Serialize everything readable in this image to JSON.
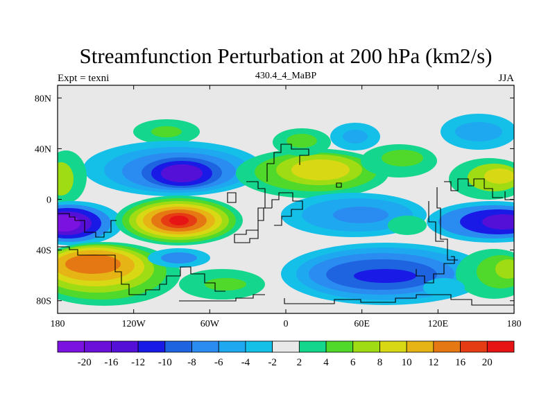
{
  "title": "Streamfunction Perturbation at 200 hPa (km2/s)",
  "left_label": "Expt = texni",
  "center_label": "430.4_4_MaBP",
  "right_label": "JJA",
  "y_ticks": [
    {
      "lat": 80,
      "label": "80N"
    },
    {
      "lat": 40,
      "label": "40N"
    },
    {
      "lat": 0,
      "label": "0"
    },
    {
      "lat": -40,
      "label": "40S"
    },
    {
      "lat": -80,
      "label": "80S"
    }
  ],
  "x_ticks": [
    {
      "lon": -180,
      "label": "180"
    },
    {
      "lon": -120,
      "label": "120W"
    },
    {
      "lon": -60,
      "label": "60W"
    },
    {
      "lon": 0,
      "label": "0"
    },
    {
      "lon": 60,
      "label": "60E"
    },
    {
      "lon": 120,
      "label": "120E"
    },
    {
      "lon": 180,
      "label": "180"
    }
  ],
  "colorbar": {
    "colors": [
      "#7b12e0",
      "#6a10d9",
      "#5410d6",
      "#1a1ae6",
      "#1e64e0",
      "#2a8cf0",
      "#1ea8f0",
      "#14c0e8",
      "#e8e8e8",
      "#14d68c",
      "#50d82a",
      "#a0dc14",
      "#d8d814",
      "#e6b414",
      "#e67814",
      "#e63c14",
      "#e61414"
    ],
    "labels": [
      "-20",
      "-16",
      "-12",
      "-10",
      "-8",
      "-6",
      "-4",
      "-2",
      "2",
      "4",
      "6",
      "8",
      "10",
      "12",
      "16",
      "20"
    ]
  },
  "chart_data": {
    "type": "heatmap",
    "title": "Streamfunction Perturbation at 200 hPa (km2/s)",
    "units": "km2/s",
    "x_range": [
      -180,
      180
    ],
    "y_range": [
      -90,
      90
    ],
    "season": "JJA",
    "experiment": "texni",
    "features": [
      {
        "lon": -170,
        "lat": -20,
        "value": -20
      },
      {
        "lon": -90,
        "lat": 25,
        "value": -18
      },
      {
        "lon": -90,
        "lat": -18,
        "value": 20
      },
      {
        "lon": -150,
        "lat": -52,
        "value": 14
      },
      {
        "lon": -90,
        "lat": -45,
        "value": -5
      },
      {
        "lon": -90,
        "lat": 55,
        "value": 5
      },
      {
        "lon": 20,
        "lat": 25,
        "value": 10
      },
      {
        "lon": 70,
        "lat": -58,
        "value": -14
      },
      {
        "lon": 80,
        "lat": 0,
        "value": -6
      },
      {
        "lon": 170,
        "lat": -20,
        "value": -16
      },
      {
        "lon": 150,
        "lat": 50,
        "value": -5
      },
      {
        "lon": 170,
        "lat": 25,
        "value": 7
      },
      {
        "lon": -170,
        "lat": 20,
        "value": 8
      },
      {
        "lon": 130,
        "lat": -58,
        "value": -4
      },
      {
        "lon": 40,
        "lat": -30,
        "value": 5
      },
      {
        "lon": 40,
        "lat": 55,
        "value": 4
      }
    ]
  }
}
